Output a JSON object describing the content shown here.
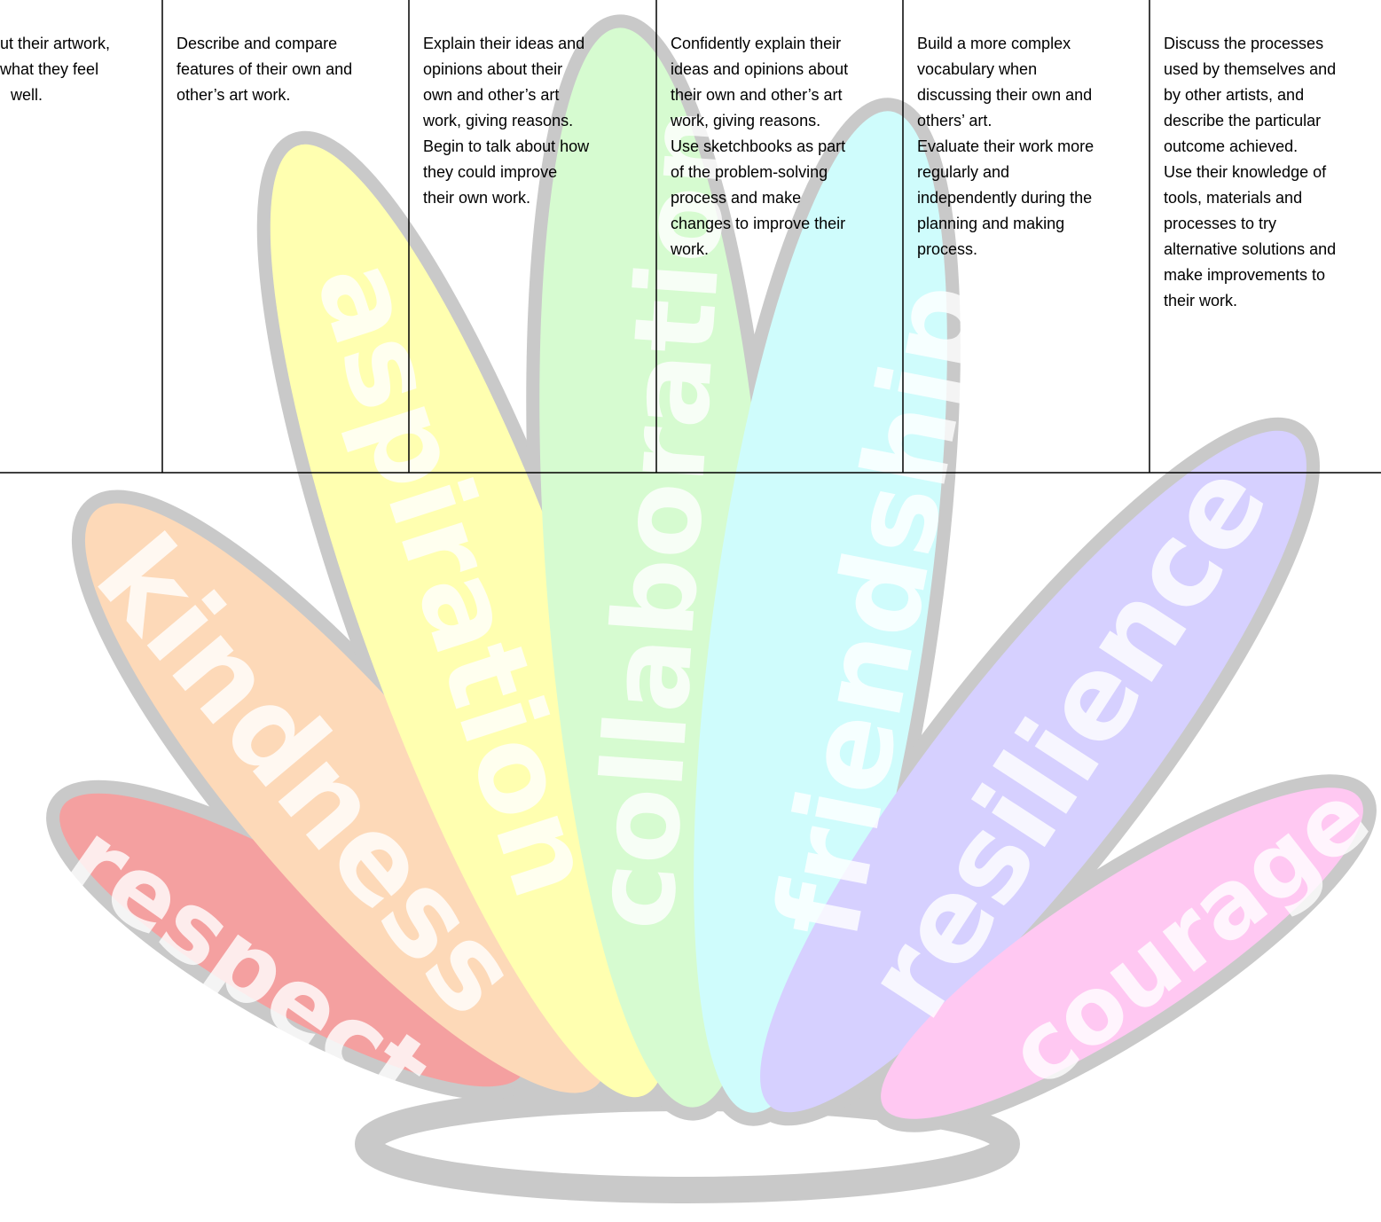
{
  "table": {
    "rows": [
      [
        [
          "ut their artwork,",
          "what they feel",
          "well."
        ],
        [
          "Describe and compare",
          "features of their own and",
          "other’s art work."
        ],
        [
          "Explain their ideas and",
          "opinions about their",
          "own and other’s art",
          "work, giving reasons.",
          "Begin to talk about how",
          "they could improve",
          "their own work."
        ],
        [
          "Confidently explain their",
          "ideas and opinions about",
          "their own and other’s art",
          "work, giving reasons.",
          "Use sketchbooks as part",
          "of the problem-solving",
          "process and make",
          "changes to improve their",
          "work."
        ],
        [
          "Build a more complex",
          "vocabulary when",
          "discussing their own and",
          "others’ art.",
          "Evaluate their work more",
          "regularly and",
          "independently during the",
          "planning and making",
          "process."
        ],
        [
          "Discuss the processes",
          "used by themselves and",
          "by other artists, and",
          "describe the particular",
          "outcome achieved.",
          "Use their knowledge of",
          "tools, materials and",
          "processes to try",
          "alternative solutions and",
          "make improvements to",
          "their work."
        ]
      ]
    ]
  },
  "watermark": {
    "words": [
      "respect",
      "kindness",
      "aspiration",
      "collaboration",
      "friendship",
      "resilience",
      "courage"
    ]
  }
}
